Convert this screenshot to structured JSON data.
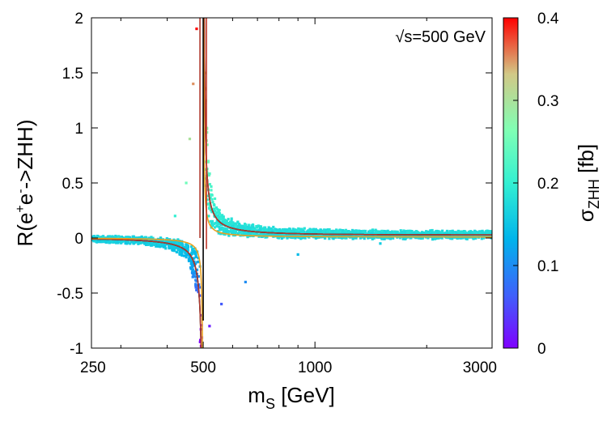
{
  "chart_data": {
    "type": "scatter",
    "title": "",
    "annotation": "√s=500 GeV",
    "xlabel": {
      "main": "m",
      "sub": "S",
      "unit": " [GeV]"
    },
    "ylabel": {
      "pre": "R(e",
      "sup1": "+",
      "mid": "e",
      "sup2": "-",
      "post": "->ZHH)"
    },
    "colorbar_label": {
      "main": "σ",
      "sub": "ZHH",
      "unit": " [fb]"
    },
    "x_scale": "log",
    "xlim": [
      250,
      3000
    ],
    "ylim": [
      -1,
      2
    ],
    "x_ticks": [
      250,
      500,
      1000,
      3000
    ],
    "x_tick_labels": [
      "250",
      "500",
      "1000",
      "3000"
    ],
    "y_ticks": [
      -1,
      -0.5,
      0,
      0.5,
      1,
      1.5,
      2
    ],
    "y_tick_labels": [
      "-1",
      "-0.5",
      "0",
      "0.5",
      "1",
      "1.5",
      "2"
    ],
    "colorbar_range": [
      0,
      0.4
    ],
    "colorbar_ticks": [
      0,
      0.1,
      0.2,
      0.3,
      0.4
    ],
    "colorbar_tick_labels": [
      "0",
      "0.1",
      "0.2",
      "0.3",
      "0.4"
    ],
    "resonance_mass": 500,
    "series": [
      {
        "name": "black curve",
        "color": "#000000",
        "width": 0.012
      },
      {
        "name": "brown curve",
        "color": "#b03a2e",
        "width": 0.03
      },
      {
        "name": "orange curve",
        "color": "#e8a020",
        "width": 0.004
      }
    ],
    "scatter_points": [
      {
        "x": 480,
        "y": 1.9,
        "c": 0.4
      },
      {
        "x": 470,
        "y": 1.4,
        "c": 0.35
      },
      {
        "x": 460,
        "y": 0.9,
        "c": 0.3
      },
      {
        "x": 450,
        "y": 0.5,
        "c": 0.25
      },
      {
        "x": 420,
        "y": 0.2,
        "c": 0.2
      },
      {
        "x": 520,
        "y": -0.8,
        "c": 0.02
      },
      {
        "x": 560,
        "y": -0.6,
        "c": 0.06
      },
      {
        "x": 650,
        "y": -0.4,
        "c": 0.1
      },
      {
        "x": 900,
        "y": -0.15,
        "c": 0.14
      },
      {
        "x": 1500,
        "y": -0.05,
        "c": 0.16
      },
      {
        "x": 300,
        "y": 0.0,
        "c": 0.18
      }
    ]
  }
}
